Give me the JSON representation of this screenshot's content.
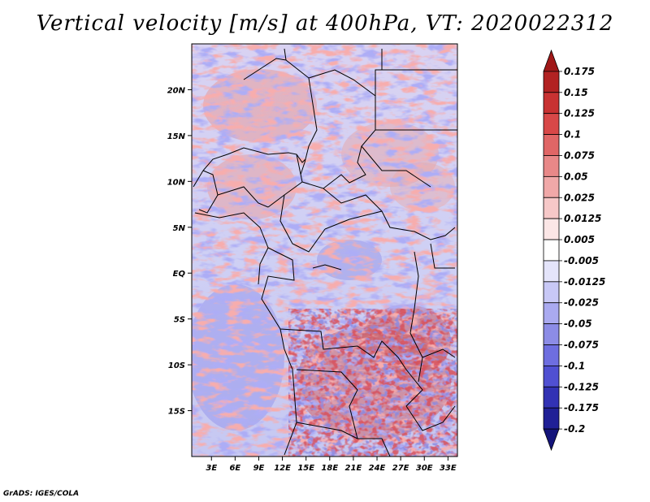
{
  "title": "Vertical velocity [m/s] at 400hPa, VT: 2020022312",
  "credit": "GrADS: IGES/COLA",
  "chart_data": {
    "type": "heatmap",
    "title": "Vertical velocity [m/s] at 400hPa, VT: 2020022312",
    "variable": "Vertical velocity",
    "units": "m/s",
    "level": "400hPa",
    "valid_time": "2020022312",
    "x_ticks": [
      "3E",
      "6E",
      "9E",
      "12E",
      "15E",
      "18E",
      "21E",
      "24E",
      "27E",
      "30E",
      "33E"
    ],
    "x_tick_values": [
      3,
      6,
      9,
      12,
      15,
      18,
      21,
      24,
      27,
      30,
      33
    ],
    "y_ticks": [
      "20N",
      "15N",
      "10N",
      "5N",
      "EQ",
      "5S",
      "10S",
      "15S"
    ],
    "y_tick_values": [
      20,
      15,
      10,
      5,
      0,
      -5,
      -10,
      -15
    ],
    "xlim": [
      0.5,
      34.2
    ],
    "ylim": [
      -20,
      25
    ],
    "colorbar": {
      "labels": [
        "0.175",
        "0.15",
        "0.125",
        "0.1",
        "0.075",
        "0.05",
        "0.025",
        "0.0125",
        "0.005",
        "-0.005",
        "-0.0125",
        "-0.025",
        "-0.05",
        "-0.075",
        "-0.1",
        "-0.125",
        "-0.175",
        "-0.2"
      ],
      "colors": [
        "#a01818",
        "#b22222",
        "#c83232",
        "#d84848",
        "#e06666",
        "#e88888",
        "#f0a8a8",
        "#f6c8c8",
        "#fbe6e6",
        "#ffffff",
        "#e4e4fa",
        "#c8c8f6",
        "#aaaaf0",
        "#8c8ce6",
        "#6e6ee0",
        "#5050d2",
        "#3232b4",
        "#202096",
        "#14147a"
      ]
    }
  }
}
